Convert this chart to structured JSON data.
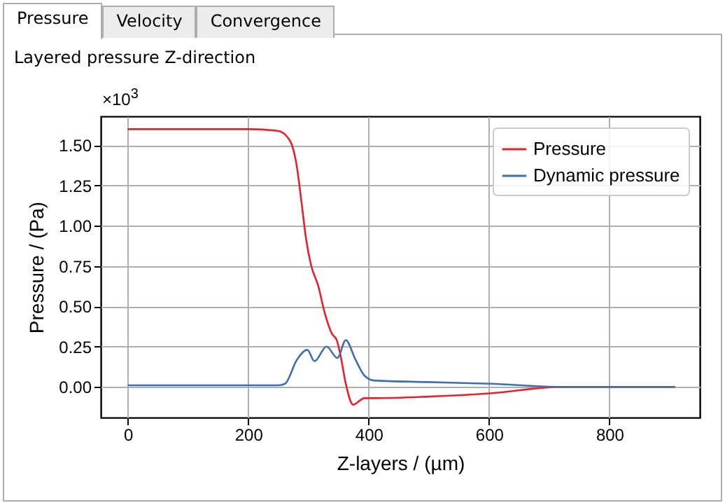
{
  "chart_data": {
    "type": "line",
    "title": "Layered pressure Z-direction",
    "xlabel": "Z-layers / (µm)",
    "ylabel": "Pressure / (Pa)",
    "annotations": [
      "×10$^{3}$",
      "Pressure",
      "Velocity",
      "Convergence"
    ],
    "xlim": [
      -45,
      950
    ],
    "xticks": [
      0,
      200,
      400,
      600,
      800
    ],
    "ylim": [
      -0.19,
      1.68
    ],
    "yticks": [
      {
        "value": 0,
        "label": "0.00"
      },
      {
        "value": 0.25,
        "label": "0.25"
      },
      {
        "value": 0.5,
        "label": "0.50"
      },
      {
        "value": 0.75,
        "label": "0.75"
      },
      {
        "value": 1,
        "label": "1.00"
      },
      {
        "value": 1.25,
        "label": "1.25"
      },
      {
        "value": 1.5,
        "label": "1.50"
      }
    ],
    "grid": true,
    "legend": "top right",
    "series": [
      {
        "name": "Pressure",
        "color": "#e8202a",
        "x": [
          0,
          100,
          200,
          249,
          269,
          281,
          288,
          296,
          304,
          316,
          327,
          339,
          347,
          353,
          362,
          374,
          393,
          409,
          500,
          602,
          719,
          800,
          909
        ],
        "values": [
          1.6,
          1.6,
          1.6,
          1.59,
          1.53,
          1.36,
          1.16,
          0.92,
          0.76,
          0.63,
          0.46,
          0.33,
          0.29,
          0.2,
          0.02,
          -0.11,
          -0.07,
          -0.07,
          -0.06,
          -0.04,
          0,
          0,
          0
        ]
      },
      {
        "name": "Dynamic pressure",
        "color": "#3f6fae",
        "x": [
          0,
          100,
          200,
          250,
          261,
          281,
          298,
          310,
          330,
          348,
          362,
          378,
          393,
          409,
          500,
          602,
          719,
          800,
          909
        ],
        "values": [
          0.01,
          0.01,
          0.01,
          0.01,
          0.02,
          0.17,
          0.23,
          0.16,
          0.25,
          0.18,
          0.29,
          0.17,
          0.07,
          0.04,
          0.03,
          0.02,
          0,
          0,
          0
        ]
      }
    ]
  }
}
